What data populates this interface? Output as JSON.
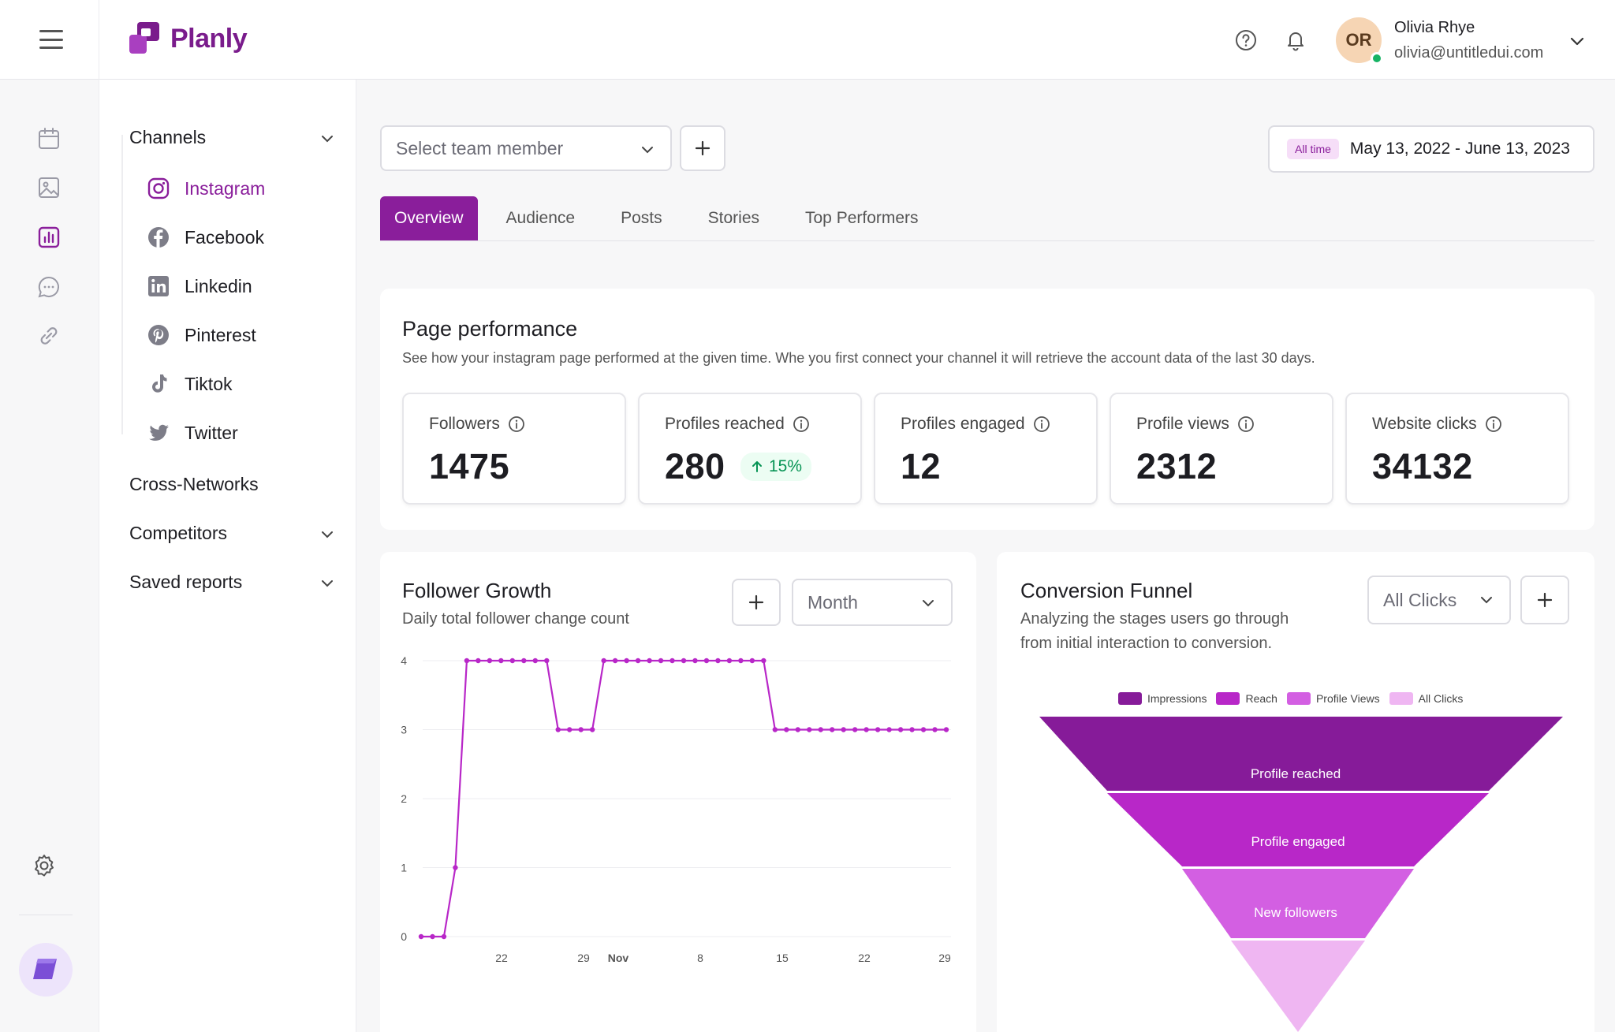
{
  "app": {
    "name": "Planly"
  },
  "user": {
    "initials": "OR",
    "name": "Olivia Rhye",
    "email": "olivia@untitledui.com"
  },
  "nav": {
    "channels_label": "Channels",
    "channels": [
      {
        "label": "Instagram",
        "icon": "instagram-icon",
        "active": true
      },
      {
        "label": "Facebook",
        "icon": "facebook-icon"
      },
      {
        "label": "Linkedin",
        "icon": "linkedin-icon"
      },
      {
        "label": "Pinterest",
        "icon": "pinterest-icon"
      },
      {
        "label": "Tiktok",
        "icon": "tiktok-icon"
      },
      {
        "label": "Twitter",
        "icon": "twitter-icon"
      }
    ],
    "cross_networks": "Cross-Networks",
    "competitors": "Competitors",
    "saved_reports": "Saved reports"
  },
  "toolbar": {
    "member_placeholder": "Select team member",
    "date_badge": "All time",
    "date_range": "May 13, 2022 - June 13, 2023"
  },
  "tabs": [
    "Overview",
    "Audience",
    "Posts",
    "Stories",
    "Top Performers"
  ],
  "performance": {
    "title": "Page performance",
    "subtitle": "See how your instagram page performed at the given time. Whe you first connect your channel it will retrieve the account data of the last 30 days.",
    "metrics": [
      {
        "label": "Followers",
        "value": "1475"
      },
      {
        "label": "Profiles reached",
        "value": "280",
        "delta": "15%"
      },
      {
        "label": "Profiles engaged",
        "value": "12"
      },
      {
        "label": "Profile views",
        "value": "2312"
      },
      {
        "label": "Website clicks",
        "value": "34132"
      }
    ]
  },
  "growth": {
    "title": "Follower Growth",
    "subtitle": "Daily total follower change count",
    "period": "Month"
  },
  "funnel": {
    "title": "Conversion Funnel",
    "subtitle_line1": "Analyzing the stages users go through",
    "subtitle_line2": "from initial interaction to conversion.",
    "filter": "All Clicks",
    "legend": [
      "Impressions",
      "Reach",
      "Profile Views",
      "All Clicks"
    ],
    "stages": [
      "Profile reached",
      "Profile engaged",
      "New followers",
      ""
    ],
    "colors": [
      "#861b99",
      "#b827c8",
      "#d35fe2",
      "#efb6f2"
    ]
  },
  "chart_data": {
    "type": "line",
    "title": "Follower Growth",
    "x_tick_labels": [
      "22",
      "29",
      "Nov",
      "8",
      "15",
      "22",
      "29"
    ],
    "ylim": [
      0,
      4
    ],
    "y_ticks": [
      0,
      1,
      2,
      3,
      4
    ],
    "grid": true,
    "color": "#b827c8",
    "series": [
      {
        "values": [
          0,
          0,
          0,
          1,
          4,
          4,
          4,
          4,
          4,
          4,
          4,
          4,
          3,
          3,
          3,
          3,
          4,
          4,
          4,
          4,
          4,
          4,
          4,
          4,
          4,
          4,
          4,
          4,
          4,
          4,
          4,
          3,
          3,
          3,
          3,
          3,
          3,
          3,
          3,
          3,
          3,
          3,
          3,
          3,
          3,
          3,
          3
        ]
      }
    ]
  }
}
